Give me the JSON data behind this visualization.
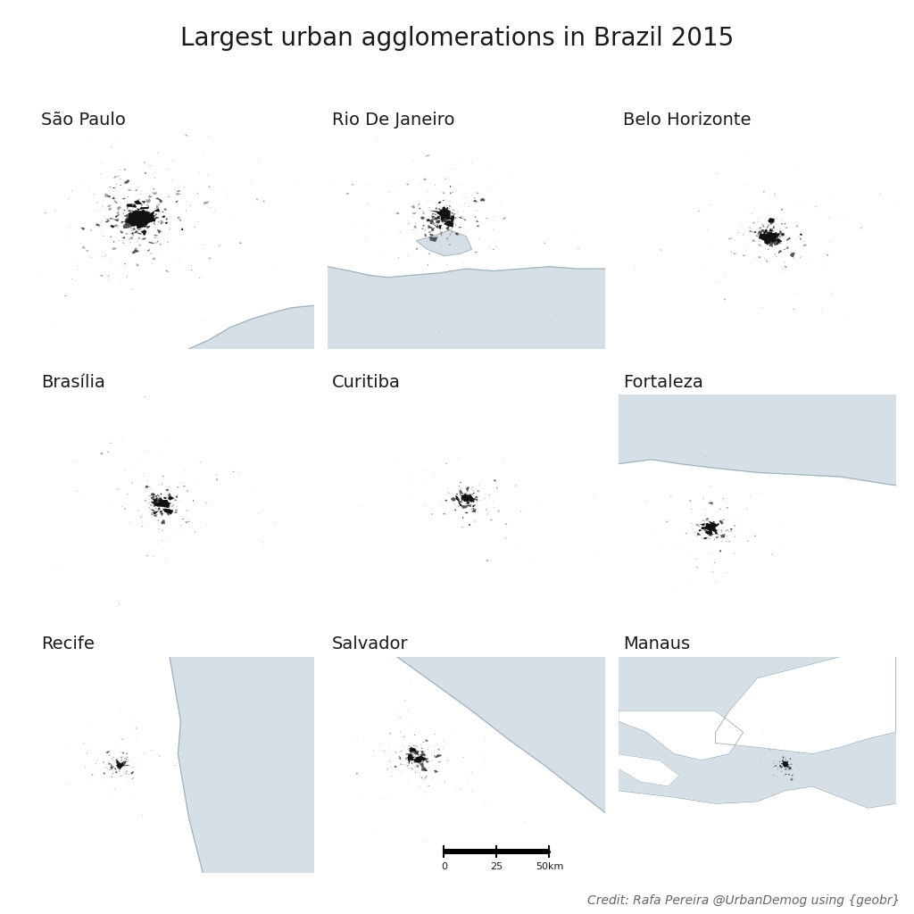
{
  "title": "Largest urban agglomerations in Brazil 2015",
  "cities": [
    "São Paulo",
    "Rio De Janeiro",
    "Belo Horizonte",
    "Brasília",
    "Curitiba",
    "Fortaleza",
    "Recife",
    "Salvador",
    "Manaus"
  ],
  "background_color": "#ffffff",
  "water_color": "#d6dfe6",
  "urban_dark": "#111111",
  "urban_mid": "#444444",
  "urban_light": "#777777",
  "coast_line_color": "#9ab0bc",
  "credit_text": "Credit: Rafa Pereira @UrbanDemog using {geobr}",
  "title_fontsize": 20,
  "label_fontsize": 14,
  "credit_fontsize": 10
}
